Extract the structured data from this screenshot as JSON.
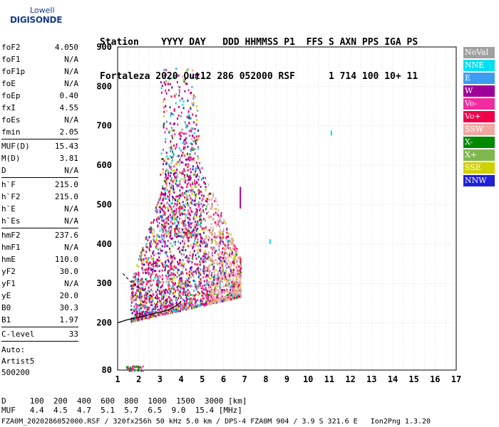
{
  "logo": {
    "line1": "Lowell",
    "line2": "DIGISONDE"
  },
  "header": {
    "labels": [
      "Station",
      "YYYY DAY",
      "DDD HHMMSS P1",
      "FFS S AXN PPS IGA PS"
    ],
    "values": [
      "Fortaleza",
      "2020 Out12",
      "286 052000 RSF",
      "1 714 100 10+ 11"
    ]
  },
  "params": [
    {
      "name": "foF2",
      "value": "4.050"
    },
    {
      "name": "foF1",
      "value": "N/A"
    },
    {
      "name": "foF1p",
      "value": "N/A"
    },
    {
      "name": "foE",
      "value": "N/A"
    },
    {
      "name": "foEp",
      "value": "0.40"
    },
    {
      "name": "fxI",
      "value": "4.55"
    },
    {
      "name": "foEs",
      "value": "N/A"
    },
    {
      "name": "fmin",
      "value": "2.05"
    },
    {
      "sep": true
    },
    {
      "name": "MUF(D)",
      "value": "15.43"
    },
    {
      "name": "M(D)",
      "value": "3.81"
    },
    {
      "name": "D",
      "value": "N/A"
    },
    {
      "sep": true
    },
    {
      "name": "h`F",
      "value": "215.0"
    },
    {
      "name": "h`F2",
      "value": "215.0"
    },
    {
      "name": "h`E",
      "value": "N/A"
    },
    {
      "name": "h`Es",
      "value": "N/A"
    },
    {
      "sep": true
    },
    {
      "name": "hmF2",
      "value": "237.6"
    },
    {
      "name": "hmF1",
      "value": "N/A"
    },
    {
      "name": "hmE",
      "value": "110.0"
    },
    {
      "name": "yF2",
      "value": "30.0"
    },
    {
      "name": "yF1",
      "value": "N/A"
    },
    {
      "name": "yE",
      "value": "20.0"
    },
    {
      "name": "B0",
      "value": "30.3"
    },
    {
      "name": "B1",
      "value": "1.97"
    },
    {
      "sep": true
    },
    {
      "name": "C-level",
      "value": "33"
    },
    {
      "sep": true
    }
  ],
  "auto": [
    "Auto:",
    "Artist5",
    "500200"
  ],
  "legend": [
    {
      "label": "NoVal",
      "color": "#a0a0a0"
    },
    {
      "label": "NNE",
      "color": "#00e0f0"
    },
    {
      "label": "E",
      "color": "#3c9cf0"
    },
    {
      "label": "W",
      "color": "#a0009a"
    },
    {
      "label": "Vo-",
      "color": "#f02ca0"
    },
    {
      "label": "Vo+",
      "color": "#f0004a"
    },
    {
      "label": "SSW",
      "color": "#f0a8a0"
    },
    {
      "label": "X-",
      "color": "#008a00"
    },
    {
      "label": "X+",
      "color": "#80b850"
    },
    {
      "label": "SSE",
      "color": "#d0d000"
    },
    {
      "label": "NNW",
      "color": "#2020d8"
    }
  ],
  "bottom": {
    "d_row": {
      "label": "D",
      "values": [
        "100",
        "200",
        "400",
        "600",
        "800",
        "1000",
        "1500",
        "3000"
      ],
      "unit": "[km]"
    },
    "muf_row": {
      "label": "MUF",
      "values": [
        "4.4",
        "4.5",
        "4.7",
        "5.1",
        "5.7",
        "6.5",
        "9.0",
        "15.4"
      ],
      "unit": "[MHz]"
    }
  },
  "footer": "FZA0M_2020286052000.RSF / 320fx256h 50 kHz 5.0 km / DPS-4 FZA0M 904 / 3.9 S 321.6 E   Ion2Png 1.3.20",
  "chart_data": {
    "type": "scatter",
    "x_ticks": [
      1,
      2,
      3,
      4,
      5,
      6,
      7,
      8,
      9,
      10,
      11,
      12,
      13,
      14,
      15,
      16,
      17
    ],
    "y_ticks": [
      80,
      200,
      300,
      400,
      500,
      600,
      700,
      800,
      900
    ],
    "xlim": [
      1,
      17
    ],
    "ylim": [
      80,
      900
    ],
    "grid": true,
    "legend_position": "right",
    "trace": {
      "x": [
        1.0,
        1.4,
        1.8,
        2.2,
        2.6,
        3.0,
        3.4,
        3.8,
        4.0
      ],
      "y": [
        200,
        207,
        212,
        217,
        222,
        227,
        233,
        244,
        255
      ]
    },
    "trace_dashed": {
      "x": [
        1.25,
        1.6,
        2.0,
        2.4,
        2.8,
        3.2
      ],
      "y": [
        325,
        305,
        290,
        275,
        262,
        250
      ]
    },
    "traces_small": [
      {
        "x": [
          11.1,
          11.1
        ],
        "y": [
          675,
          688
        ],
        "series": "NNE"
      },
      {
        "x": [
          8.2,
          8.2
        ],
        "y": [
          400,
          412
        ],
        "series": "NNE"
      },
      {
        "x": [
          6.8,
          6.8
        ],
        "y": [
          490,
          545
        ],
        "series": "W"
      }
    ]
  }
}
